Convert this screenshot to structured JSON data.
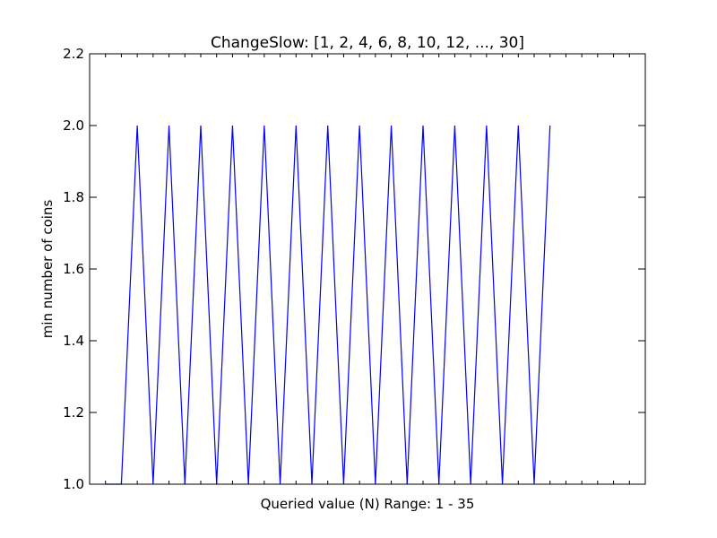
{
  "chart_data": {
    "type": "line",
    "title": "ChangeSlow: [1, 2, 4, 6, 8, 10, 12, ..., 30]",
    "xlabel": "Queried value (N) Range: 1 - 35",
    "ylabel": "min number of coins",
    "xlim": [
      0,
      35
    ],
    "ylim": [
      1.0,
      2.2
    ],
    "yticks": [
      "1.0",
      "1.2",
      "1.4",
      "1.6",
      "1.8",
      "2.0",
      "2.2"
    ],
    "x_tick_labels_shown": false,
    "grid": false,
    "line_color": "#0000ff",
    "series": [
      {
        "x": [
          1,
          2,
          3,
          4,
          5,
          6,
          7,
          8,
          9,
          10,
          11,
          12,
          13,
          14,
          15,
          16,
          17,
          18,
          19,
          20,
          21,
          22,
          23,
          24,
          25,
          26,
          27,
          28,
          29
        ],
        "values": [
          1,
          1,
          2,
          1,
          2,
          1,
          2,
          1,
          2,
          1,
          2,
          1,
          2,
          1,
          2,
          1,
          2,
          1,
          2,
          1,
          2,
          1,
          2,
          1,
          2,
          1,
          2,
          1,
          2
        ]
      }
    ]
  }
}
